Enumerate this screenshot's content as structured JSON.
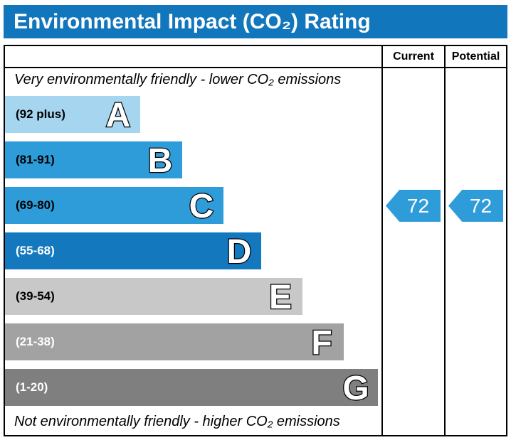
{
  "title": "Environmental Impact (CO₂) Rating",
  "title_bar_color": "#1176bc",
  "columns": {
    "current": "Current",
    "potential": "Potential"
  },
  "notes": {
    "top": "Very environmentally friendly - lower CO₂ emissions",
    "bottom": "Not environmentally friendly - higher CO₂ emissions"
  },
  "bands": [
    {
      "letter": "A",
      "range": "(92 plus)",
      "color": "#a5d5ef",
      "label_color": "#000000",
      "width_pct": 36
    },
    {
      "letter": "B",
      "range": "(81-91)",
      "color": "#2e9cd9",
      "label_color": "#000000",
      "width_pct": 47
    },
    {
      "letter": "C",
      "range": "(69-80)",
      "color": "#2e9cd9",
      "label_color": "#000000",
      "width_pct": 58
    },
    {
      "letter": "D",
      "range": "(55-68)",
      "color": "#1478be",
      "label_color": "#ffffff",
      "width_pct": 68
    },
    {
      "letter": "E",
      "range": "(39-54)",
      "color": "#c8c8c8",
      "label_color": "#000000",
      "width_pct": 79
    },
    {
      "letter": "F",
      "range": "(21-38)",
      "color": "#a2a2a2",
      "label_color": "#ffffff",
      "width_pct": 90
    },
    {
      "letter": "G",
      "range": "(1-20)",
      "color": "#7f7f7f",
      "label_color": "#ffffff",
      "width_pct": 99
    }
  ],
  "current": {
    "value": "72",
    "color": "#2e9cd9"
  },
  "potential": {
    "value": "72",
    "color": "#2e9cd9"
  },
  "chart_data": {
    "type": "bar",
    "title": "Environmental Impact (CO₂) Rating",
    "categories": [
      "A",
      "B",
      "C",
      "D",
      "E",
      "F",
      "G"
    ],
    "band_ranges": [
      "92 plus",
      "81-91",
      "69-80",
      "55-68",
      "39-54",
      "21-38",
      "1-20"
    ],
    "bar_widths_pct": [
      36,
      47,
      58,
      68,
      79,
      90,
      99
    ],
    "band_colors": [
      "#a5d5ef",
      "#2e9cd9",
      "#2e9cd9",
      "#1478be",
      "#c8c8c8",
      "#a2a2a2",
      "#7f7f7f"
    ],
    "current_value": 72,
    "potential_value": 72,
    "current_band": "C",
    "potential_band": "C",
    "annotations": [
      "Very environmentally friendly - lower CO₂ emissions",
      "Not environmentally friendly - higher CO₂ emissions"
    ],
    "legend_position": "none",
    "grid": false
  }
}
